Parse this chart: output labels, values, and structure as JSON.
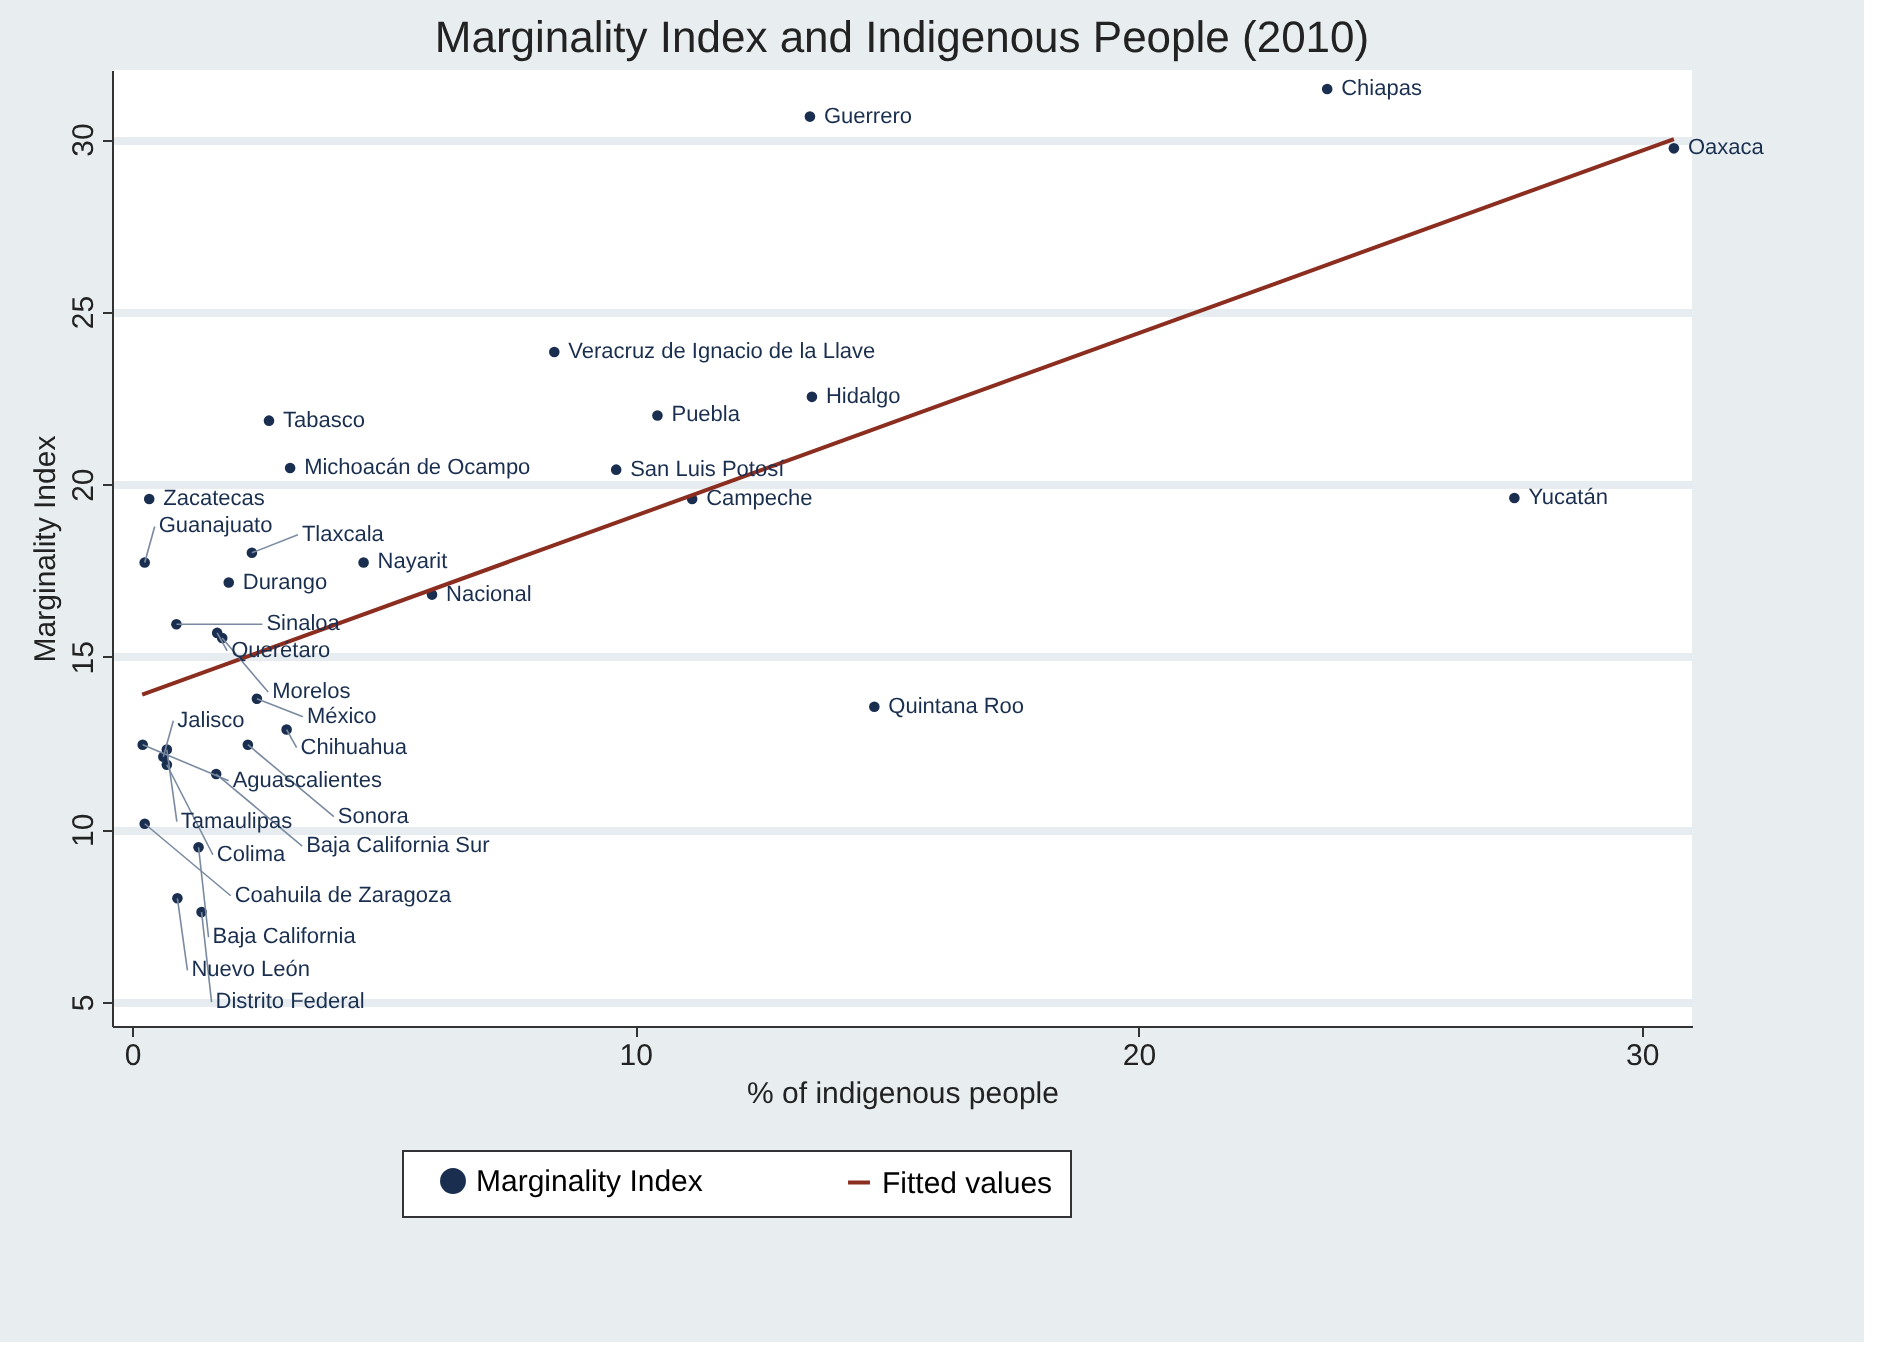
{
  "chart_data": {
    "type": "scatter",
    "title": "Marginality Index and Indigenous People (2010)",
    "xlabel": "% of indigenous people",
    "ylabel": "Marginality Index",
    "xlim": [
      -0.4,
      31
    ],
    "ylim": [
      4.3,
      32
    ],
    "xticks": [
      0,
      10,
      20,
      30
    ],
    "yticks": [
      5,
      10,
      15,
      20,
      25,
      30
    ],
    "grid": "y",
    "legend": "bottom",
    "series": [
      {
        "name": "Marginality Index",
        "marker": "circle",
        "color": "#1a2f4f",
        "x": [
          23.75,
          13.47,
          30.64,
          8.39,
          2.72,
          10.44,
          13.51,
          3.14,
          9.62,
          0.34,
          11.13,
          27.47,
          14.75,
          0.25,
          2.38,
          4.6,
          1.92,
          5.96,
          0.88,
          1.69,
          1.79,
          2.48,
          3.07,
          0.21,
          0.69,
          0.62,
          0.69,
          2.3,
          1.67,
          0.25,
          1.32,
          0.9,
          1.38
        ],
        "values": [
          31.45,
          30.65,
          29.73,
          23.83,
          21.84,
          21.99,
          22.53,
          20.47,
          20.42,
          19.57,
          19.57,
          19.6,
          13.55,
          17.73,
          18.01,
          17.73,
          17.15,
          16.8,
          15.94,
          15.69,
          15.54,
          13.78,
          12.89,
          12.45,
          12.31,
          12.1,
          11.87,
          12.45,
          11.6,
          10.16,
          9.48,
          8.0,
          7.6
        ]
      },
      {
        "name": "Fitted values",
        "type": "line",
        "color": "#8b2e20",
        "line_style": "solid",
        "x": [
          0.2,
          30.64
        ],
        "values": [
          13.9,
          30.0
        ]
      }
    ],
    "annotations": [
      {
        "text": "Chiapas",
        "x": 23.75,
        "y": 31.45
      },
      {
        "text": "Guerrero",
        "x": 13.47,
        "y": 30.65
      },
      {
        "text": "Oaxaca",
        "x": 30.64,
        "y": 29.73
      },
      {
        "text": "Veracruz de Ignacio de la Llave",
        "x": 8.39,
        "y": 23.83
      },
      {
        "text": "Tabasco",
        "x": 2.72,
        "y": 21.84
      },
      {
        "text": "Puebla",
        "x": 10.44,
        "y": 21.99
      },
      {
        "text": "Hidalgo",
        "x": 13.51,
        "y": 22.53
      },
      {
        "text": "Michoacán de Ocampo",
        "x": 3.14,
        "y": 20.47
      },
      {
        "text": "San Luis Potosí",
        "x": 9.62,
        "y": 20.42
      },
      {
        "text": "Zacatecas",
        "x": 0.34,
        "y": 19.57
      },
      {
        "text": "Campeche",
        "x": 11.13,
        "y": 19.57
      },
      {
        "text": "Yucatán",
        "x": 27.47,
        "y": 19.6
      },
      {
        "text": "Quintana Roo",
        "x": 14.75,
        "y": 13.55
      },
      {
        "text": "Guanajuato",
        "x": 0.25,
        "y": 17.73
      },
      {
        "text": "Tlaxcala",
        "x": 2.38,
        "y": 18.01
      },
      {
        "text": "Nayarit",
        "x": 4.6,
        "y": 17.73
      },
      {
        "text": "Durango",
        "x": 1.92,
        "y": 17.15
      },
      {
        "text": "Nacional",
        "x": 5.96,
        "y": 16.8
      },
      {
        "text": "Sinaloa",
        "x": 0.88,
        "y": 15.94
      },
      {
        "text": "Querétaro",
        "x": 1.69,
        "y": 15.69
      },
      {
        "text": "Morelos",
        "x": 1.79,
        "y": 15.54
      },
      {
        "text": "México",
        "x": 2.48,
        "y": 13.78
      },
      {
        "text": "Chihuahua",
        "x": 3.07,
        "y": 12.89
      },
      {
        "text": "Aguascalientes",
        "x": 0.21,
        "y": 12.45
      },
      {
        "text": "Tamaulipas",
        "x": 0.69,
        "y": 12.31
      },
      {
        "text": "Jalisco",
        "x": 0.62,
        "y": 12.1
      },
      {
        "text": "Colima",
        "x": 0.69,
        "y": 11.87
      },
      {
        "text": "Sonora",
        "x": 2.3,
        "y": 12.45
      },
      {
        "text": "Baja California Sur",
        "x": 1.67,
        "y": 11.6
      },
      {
        "text": "Coahuila de Zaragoza",
        "x": 0.25,
        "y": 10.16
      },
      {
        "text": "Baja California",
        "x": 1.32,
        "y": 9.48
      },
      {
        "text": "Nuevo León",
        "x": 0.9,
        "y": 8.0
      },
      {
        "text": "Distrito Federal",
        "x": 1.38,
        "y": 7.6
      }
    ]
  }
}
